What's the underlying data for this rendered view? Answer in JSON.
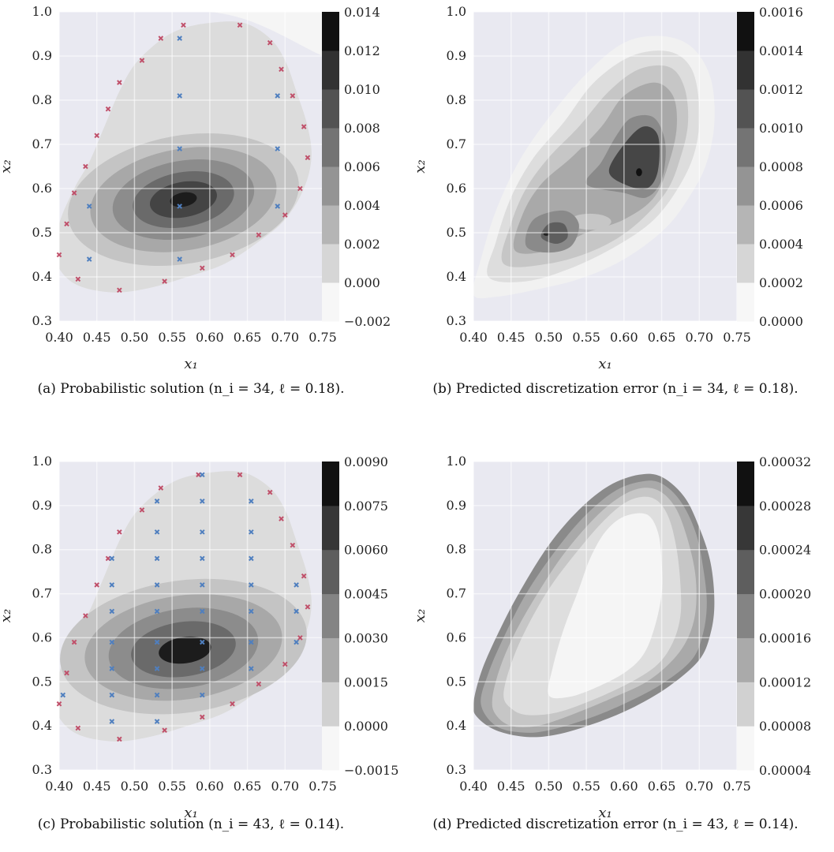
{
  "chart_data": [
    {
      "type": "heatmap",
      "panel": "a",
      "caption": "(a) Probabilistic solution (n_i = 34, ℓ = 0.18).",
      "xlabel": "x₁",
      "ylabel": "x₂",
      "xlim": [
        0.4,
        0.75
      ],
      "ylim": [
        0.3,
        1.0
      ],
      "xticks": [
        "0.40",
        "0.45",
        "0.50",
        "0.55",
        "0.60",
        "0.65",
        "0.70",
        "0.75"
      ],
      "yticks": [
        "0.3",
        "0.4",
        "0.5",
        "0.6",
        "0.7",
        "0.8",
        "0.9",
        "1.0"
      ],
      "colorbar_ticks": [
        "−0.002",
        "0.000",
        "0.002",
        "0.004",
        "0.006",
        "0.008",
        "0.010",
        "0.012",
        "0.014"
      ],
      "grid": true,
      "peak": [
        0.565,
        0.57
      ],
      "boundary_points": [
        [
          0.4,
          0.45
        ],
        [
          0.41,
          0.52
        ],
        [
          0.42,
          0.59
        ],
        [
          0.425,
          0.395
        ],
        [
          0.435,
          0.65
        ],
        [
          0.45,
          0.72
        ],
        [
          0.465,
          0.78
        ],
        [
          0.48,
          0.84
        ],
        [
          0.48,
          0.37
        ],
        [
          0.51,
          0.89
        ],
        [
          0.535,
          0.94
        ],
        [
          0.54,
          0.39
        ],
        [
          0.565,
          0.97
        ],
        [
          0.59,
          0.42
        ],
        [
          0.63,
          0.45
        ],
        [
          0.64,
          0.97
        ],
        [
          0.665,
          0.495
        ],
        [
          0.68,
          0.93
        ],
        [
          0.695,
          0.87
        ],
        [
          0.7,
          0.54
        ],
        [
          0.71,
          0.81
        ],
        [
          0.72,
          0.6
        ],
        [
          0.725,
          0.74
        ],
        [
          0.73,
          0.67
        ]
      ],
      "interior_points": [
        [
          0.44,
          0.56
        ],
        [
          0.44,
          0.44
        ],
        [
          0.56,
          0.94
        ],
        [
          0.56,
          0.81
        ],
        [
          0.56,
          0.69
        ],
        [
          0.56,
          0.56
        ],
        [
          0.56,
          0.44
        ],
        [
          0.69,
          0.81
        ],
        [
          0.69,
          0.69
        ],
        [
          0.69,
          0.56
        ]
      ]
    },
    {
      "type": "heatmap",
      "panel": "b",
      "caption": "(b) Predicted discretization error (n_i = 34, ℓ = 0.18).",
      "xlabel": "x₁",
      "ylabel": "x₂",
      "xlim": [
        0.4,
        0.75
      ],
      "ylim": [
        0.3,
        1.0
      ],
      "xticks": [
        "0.40",
        "0.45",
        "0.50",
        "0.55",
        "0.60",
        "0.65",
        "0.70",
        "0.75"
      ],
      "yticks": [
        "0.3",
        "0.4",
        "0.5",
        "0.6",
        "0.7",
        "0.8",
        "0.9",
        "1.0"
      ],
      "colorbar_ticks": [
        "0.0000",
        "0.0002",
        "0.0004",
        "0.0006",
        "0.0008",
        "0.0010",
        "0.0012",
        "0.0014",
        "0.0016"
      ],
      "grid": true,
      "peaks": [
        [
          0.62,
          0.64
        ],
        [
          0.5,
          0.5
        ]
      ]
    },
    {
      "type": "heatmap",
      "panel": "c",
      "caption": "(c) Probabilistic solution (n_i = 43, ℓ = 0.14).",
      "xlabel": "x₁",
      "ylabel": "x₂",
      "xlim": [
        0.4,
        0.75
      ],
      "ylim": [
        0.3,
        1.0
      ],
      "xticks": [
        "0.40",
        "0.45",
        "0.50",
        "0.55",
        "0.60",
        "0.65",
        "0.70",
        "0.75"
      ],
      "yticks": [
        "0.3",
        "0.4",
        "0.5",
        "0.6",
        "0.7",
        "0.8",
        "0.9",
        "1.0"
      ],
      "colorbar_ticks": [
        "−0.0015",
        "0.0000",
        "0.0015",
        "0.0030",
        "0.0045",
        "0.0060",
        "0.0075",
        "0.0090"
      ],
      "grid": true,
      "peak": [
        0.565,
        0.57
      ],
      "boundary_points": [
        [
          0.4,
          0.45
        ],
        [
          0.41,
          0.52
        ],
        [
          0.42,
          0.59
        ],
        [
          0.425,
          0.395
        ],
        [
          0.435,
          0.65
        ],
        [
          0.45,
          0.72
        ],
        [
          0.465,
          0.78
        ],
        [
          0.48,
          0.84
        ],
        [
          0.48,
          0.37
        ],
        [
          0.51,
          0.89
        ],
        [
          0.535,
          0.94
        ],
        [
          0.54,
          0.39
        ],
        [
          0.585,
          0.97
        ],
        [
          0.59,
          0.42
        ],
        [
          0.63,
          0.45
        ],
        [
          0.64,
          0.97
        ],
        [
          0.665,
          0.495
        ],
        [
          0.68,
          0.93
        ],
        [
          0.695,
          0.87
        ],
        [
          0.7,
          0.54
        ],
        [
          0.71,
          0.81
        ],
        [
          0.72,
          0.6
        ],
        [
          0.725,
          0.74
        ],
        [
          0.73,
          0.67
        ]
      ],
      "interior_points": [
        [
          0.405,
          0.47
        ],
        [
          0.47,
          0.78
        ],
        [
          0.47,
          0.72
        ],
        [
          0.47,
          0.66
        ],
        [
          0.47,
          0.59
        ],
        [
          0.47,
          0.53
        ],
        [
          0.47,
          0.47
        ],
        [
          0.47,
          0.41
        ],
        [
          0.53,
          0.91
        ],
        [
          0.53,
          0.84
        ],
        [
          0.53,
          0.78
        ],
        [
          0.53,
          0.72
        ],
        [
          0.53,
          0.66
        ],
        [
          0.53,
          0.59
        ],
        [
          0.53,
          0.53
        ],
        [
          0.53,
          0.47
        ],
        [
          0.53,
          0.41
        ],
        [
          0.59,
          0.97
        ],
        [
          0.59,
          0.91
        ],
        [
          0.59,
          0.84
        ],
        [
          0.59,
          0.78
        ],
        [
          0.59,
          0.72
        ],
        [
          0.59,
          0.66
        ],
        [
          0.59,
          0.59
        ],
        [
          0.59,
          0.53
        ],
        [
          0.59,
          0.47
        ],
        [
          0.655,
          0.91
        ],
        [
          0.655,
          0.84
        ],
        [
          0.655,
          0.78
        ],
        [
          0.655,
          0.72
        ],
        [
          0.655,
          0.66
        ],
        [
          0.655,
          0.59
        ],
        [
          0.655,
          0.53
        ],
        [
          0.715,
          0.72
        ],
        [
          0.715,
          0.66
        ],
        [
          0.715,
          0.59
        ]
      ]
    },
    {
      "type": "heatmap",
      "panel": "d",
      "caption": "(d) Predicted discretization error (n_i = 43, ℓ = 0.14).",
      "xlabel": "x₁",
      "ylabel": "x₂",
      "xlim": [
        0.4,
        0.75
      ],
      "ylim": [
        0.3,
        1.0
      ],
      "xticks": [
        "0.40",
        "0.45",
        "0.50",
        "0.55",
        "0.60",
        "0.65",
        "0.70",
        "0.75"
      ],
      "yticks": [
        "0.3",
        "0.4",
        "0.5",
        "0.6",
        "0.7",
        "0.8",
        "0.9",
        "1.0"
      ],
      "colorbar_ticks": [
        "0.00004",
        "0.00008",
        "0.00012",
        "0.00016",
        "0.00020",
        "0.00024",
        "0.00028",
        "0.00032"
      ],
      "grid": true
    }
  ],
  "colors": {
    "plot_background": "#e9e9f1",
    "grid": "#ffffff",
    "boundary_marker": "#c0506a",
    "interior_marker": "#4f7fbf"
  }
}
